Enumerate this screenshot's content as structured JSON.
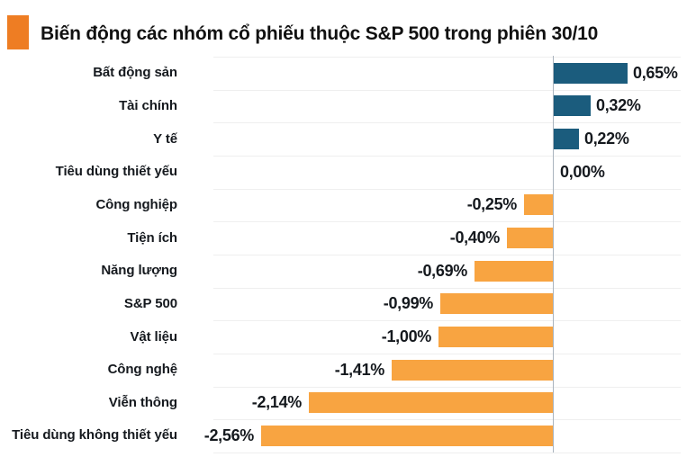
{
  "header": {
    "title": "Biến động các nhóm cổ phiếu thuộc S&P 500 trong phiên 30/10"
  },
  "colors": {
    "accent": "#EE7D23",
    "positive_bar": "#1B5C7D",
    "negative_bar": "#F8A441",
    "zero_line": "#AAB4BE",
    "grid_line": "#EFEFEF",
    "text": "#15191E",
    "title_text": "#111111",
    "background": "#FFFFFF"
  },
  "chart_data": {
    "type": "bar",
    "orientation": "horizontal",
    "title": "Biến động các nhóm cổ phiếu thuộc S&P 500 trong phiên 30/10",
    "unit": "%",
    "decimal_separator": ",",
    "xlim": [
      -2.98,
      1.12
    ],
    "grid": "row-separator-lines",
    "legend": "none",
    "zero_axis": true,
    "categories": [
      "Bất động sản",
      "Tài chính",
      "Y tế",
      "Tiêu dùng thiết yếu",
      "Công nghiệp",
      "Tiện ích",
      "Năng lượng",
      "S&P 500",
      "Vật liệu",
      "Công nghệ",
      "Viễn thông",
      "Tiêu dùng không thiết yếu"
    ],
    "values": [
      0.65,
      0.32,
      0.22,
      0.0,
      -0.25,
      -0.4,
      -0.69,
      -0.99,
      -1.0,
      -1.41,
      -2.14,
      -2.56
    ],
    "value_labels": [
      "0,65%",
      "0,32%",
      "0,22%",
      "0,00%",
      "-0,25%",
      "-0,40%",
      "-0,69%",
      "-0,99%",
      "-1,00%",
      "-1,41%",
      "-2,14%",
      "-2,56%"
    ]
  }
}
